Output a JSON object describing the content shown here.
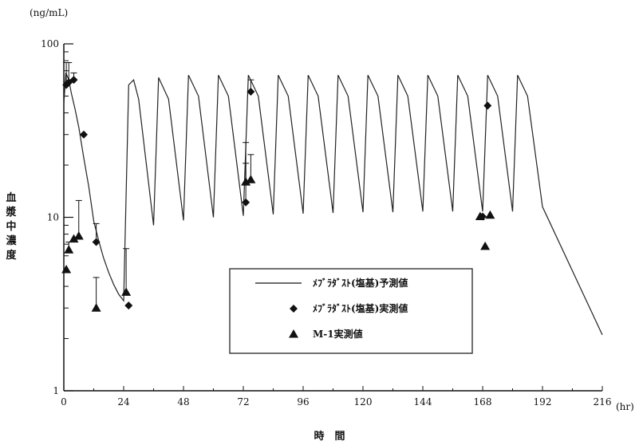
{
  "chart_data": {
    "type": "line",
    "y_unit": "(ng/mL)",
    "x_unit": "(hr)",
    "xlabel": "時　間",
    "ylabel": "血漿中濃度",
    "x_range": [
      0,
      216
    ],
    "y_range": [
      1,
      100
    ],
    "y_scale": "log",
    "x_ticks": [
      0,
      24,
      48,
      72,
      96,
      120,
      144,
      168,
      192,
      216
    ],
    "y_ticks": [
      1,
      10,
      100
    ],
    "grid": false,
    "legend_position": "bottom-center",
    "series": [
      {
        "name": "ﾒﾌﾞﾗﾀﾞｽﾄ(塩基)予測値",
        "style": "line",
        "color": "#222222",
        "x": [
          0,
          0.8,
          2,
          3,
          4.5,
          6,
          8,
          10,
          12,
          14,
          16,
          18,
          20,
          22,
          24,
          26,
          28,
          30,
          36,
          38,
          42,
          48,
          50,
          54,
          60,
          62,
          66,
          72,
          74,
          78,
          84,
          86,
          90,
          96,
          98,
          102,
          108,
          110,
          114,
          120,
          122,
          126,
          132,
          134,
          138,
          144,
          146,
          150,
          156,
          158,
          162,
          168,
          170,
          174,
          180,
          182,
          186,
          192,
          216
        ],
        "y": [
          45,
          68,
          62,
          52,
          42,
          33,
          22,
          15,
          9.5,
          7.3,
          5.8,
          4.8,
          4.1,
          3.6,
          3.3,
          58,
          62,
          48,
          9.0,
          64,
          48,
          9.6,
          66,
          50,
          10.0,
          66,
          50,
          10.2,
          66,
          50,
          10.4,
          66,
          50,
          10.5,
          66,
          50,
          10.6,
          66,
          50,
          10.7,
          66,
          50,
          10.7,
          66,
          50,
          10.8,
          66,
          50,
          10.8,
          66,
          50,
          10.8,
          66,
          50,
          10.8,
          66,
          50,
          11.5,
          2.1
        ]
      },
      {
        "name": "ﾒﾌﾞﾗﾀﾞｽﾄ(塩基)実測値",
        "style": "diamond",
        "color": "#111111",
        "x": [
          1,
          2,
          4,
          8,
          13,
          26,
          73,
          75,
          168,
          170
        ],
        "y": [
          58,
          60,
          62,
          30,
          7.2,
          3.1,
          12.2,
          53,
          10.1,
          44
        ],
        "error_upper": [
          78,
          78,
          68,
          null,
          9.2,
          null,
          27,
          62,
          null,
          null
        ]
      },
      {
        "name": "M-1実測値",
        "style": "triangle",
        "color": "#111111",
        "x": [
          1,
          2,
          4,
          6,
          13,
          25,
          73,
          75,
          167,
          169,
          171
        ],
        "y": [
          5.0,
          6.5,
          7.5,
          7.8,
          3.0,
          3.7,
          16,
          16.5,
          10.1,
          6.8,
          10.3
        ],
        "error_upper": [
          null,
          7.2,
          null,
          12.5,
          4.5,
          6.6,
          20.5,
          23,
          null,
          null,
          null
        ]
      }
    ]
  }
}
